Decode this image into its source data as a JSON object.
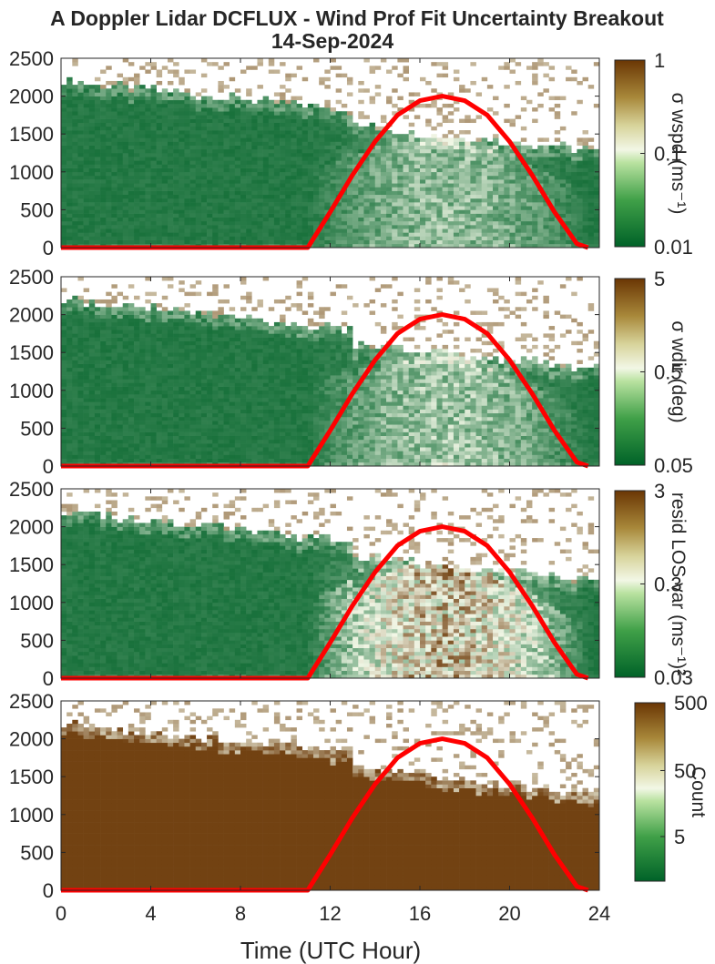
{
  "title_line1": "A Doppler Lidar DCFLUX - Wind Prof Fit Uncertainty Breakout",
  "title_line2": "14-Sep-2024",
  "xlabel": "Time (UTC Hour)",
  "colors": {
    "low": "#006228",
    "mid": "#f2f7e6",
    "high": "#6a3604",
    "nodata": "#ffffff",
    "sun_curve": "#ff0000"
  },
  "chart_data": [
    {
      "type": "heatmap",
      "panel": "wspd_uncertainty",
      "xlim": [
        0,
        24
      ],
      "ylim": [
        0,
        2500
      ],
      "xticks": [
        "0",
        "4",
        "8",
        "12",
        "16",
        "20",
        "24"
      ],
      "yticks": [
        "0",
        "500",
        "1000",
        "1500",
        "2000",
        "2500"
      ],
      "colorbar": {
        "label": "σ wspd (ms⁻¹)",
        "scale": "log",
        "ticks": [
          "1",
          "0.1",
          "0.01"
        ],
        "range": [
          0.01,
          1
        ]
      },
      "overlay": {
        "type": "line",
        "color": "#ff0000",
        "x": [
          0,
          11,
          12,
          13,
          14,
          15,
          16,
          17,
          18,
          19,
          20,
          21,
          22,
          23,
          23.5
        ],
        "y": [
          0,
          0,
          470,
          960,
          1400,
          1750,
          1940,
          2000,
          1940,
          1750,
          1400,
          960,
          470,
          50,
          0
        ]
      }
    },
    {
      "type": "heatmap",
      "panel": "wdir_uncertainty",
      "xlim": [
        0,
        24
      ],
      "ylim": [
        0,
        2500
      ],
      "xticks": [
        "0",
        "4",
        "8",
        "12",
        "16",
        "20",
        "24"
      ],
      "yticks": [
        "0",
        "500",
        "1000",
        "1500",
        "2000",
        "2500"
      ],
      "colorbar": {
        "label": "σ wdir (deg)",
        "scale": "log",
        "ticks": [
          "5",
          "0.5",
          "0.05"
        ],
        "range": [
          0.05,
          5
        ]
      },
      "overlay": {
        "type": "line",
        "color": "#ff0000",
        "x": [
          0,
          11,
          12,
          13,
          14,
          15,
          16,
          17,
          18,
          19,
          20,
          21,
          22,
          23,
          23.5
        ],
        "y": [
          0,
          0,
          470,
          960,
          1400,
          1750,
          1940,
          2000,
          1940,
          1750,
          1400,
          960,
          470,
          50,
          0
        ]
      }
    },
    {
      "type": "heatmap",
      "panel": "resid_los_var",
      "xlim": [
        0,
        24
      ],
      "ylim": [
        0,
        2500
      ],
      "xticks": [
        "0",
        "4",
        "8",
        "12",
        "16",
        "20",
        "24"
      ],
      "yticks": [
        "0",
        "500",
        "1000",
        "1500",
        "2000",
        "2500"
      ],
      "colorbar": {
        "label": "resid LOS var (ms⁻¹)²",
        "scale": "log",
        "ticks": [
          "3",
          "0.3",
          "0.03"
        ],
        "range": [
          0.03,
          3
        ]
      },
      "overlay": {
        "type": "line",
        "color": "#ff0000",
        "x": [
          0,
          11,
          12,
          13,
          14,
          15,
          16,
          17,
          18,
          19,
          20,
          21,
          22,
          23,
          23.5
        ],
        "y": [
          0,
          0,
          470,
          960,
          1400,
          1750,
          1940,
          2000,
          1940,
          1750,
          1400,
          960,
          470,
          50,
          0
        ]
      }
    },
    {
      "type": "heatmap",
      "panel": "count",
      "xlim": [
        0,
        24
      ],
      "ylim": [
        0,
        2500
      ],
      "xticks": [
        "0",
        "4",
        "8",
        "12",
        "16",
        "20",
        "24"
      ],
      "yticks": [
        "0",
        "500",
        "1000",
        "1500",
        "2000",
        "2500"
      ],
      "colorbar": {
        "label": "Count",
        "scale": "log",
        "ticks": [
          "500",
          "50",
          "5"
        ],
        "range": [
          1,
          500
        ]
      },
      "overlay": {
        "type": "line",
        "color": "#ff0000",
        "x": [
          0,
          11,
          12,
          13,
          14,
          15,
          16,
          17,
          18,
          19,
          20,
          21,
          22,
          23,
          23.5
        ],
        "y": [
          0,
          0,
          470,
          960,
          1400,
          1750,
          1940,
          2000,
          1940,
          1750,
          1400,
          960,
          470,
          50,
          0
        ]
      }
    }
  ]
}
